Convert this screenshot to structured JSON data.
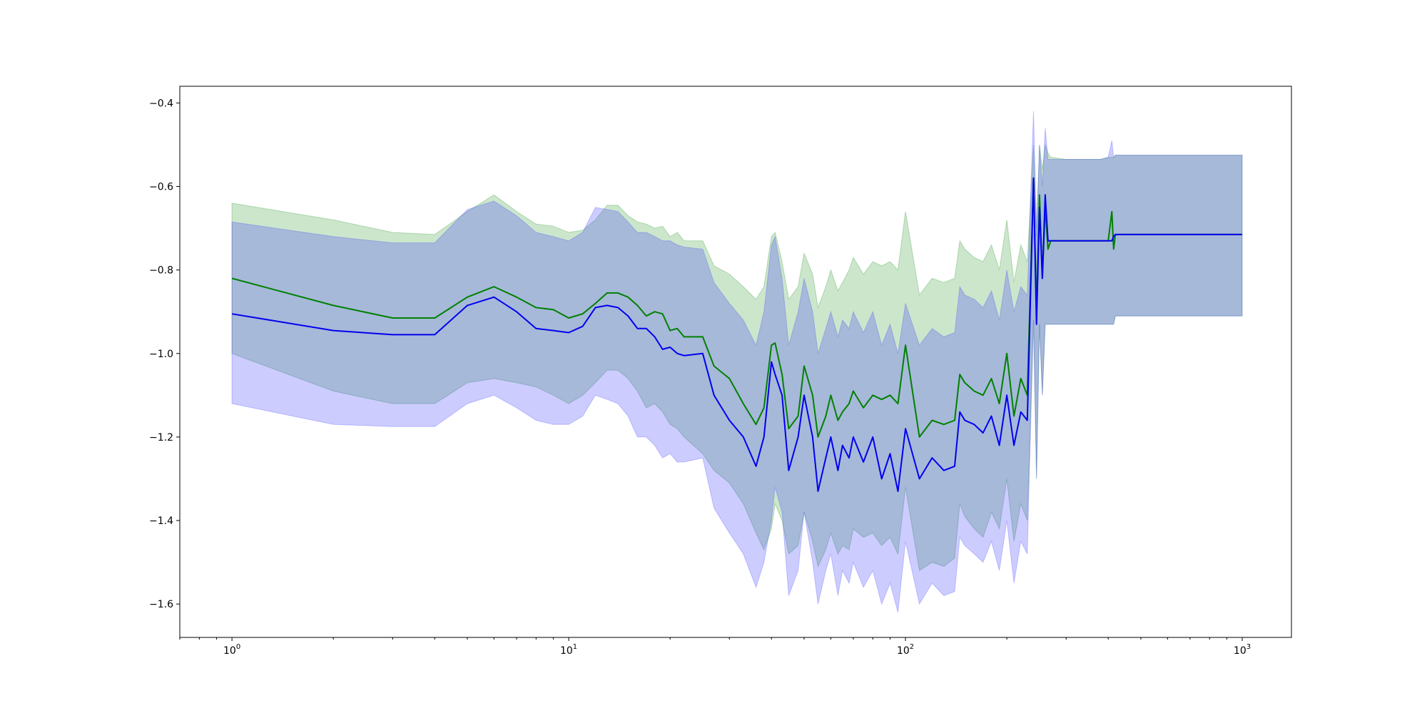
{
  "chart_data": {
    "type": "line",
    "title": "",
    "xlabel": "",
    "ylabel": "",
    "xscale": "log",
    "xlim": [
      0.7,
      1400
    ],
    "ylim": [
      -1.68,
      -0.36
    ],
    "grid": false,
    "legend": "none",
    "x_tick_values": [
      1,
      10,
      100,
      1000
    ],
    "x_ticks": [
      {
        "base": "10",
        "exp": "0"
      },
      {
        "base": "10",
        "exp": "1"
      },
      {
        "base": "10",
        "exp": "2"
      },
      {
        "base": "10",
        "exp": "3"
      }
    ],
    "y_tick_values": [
      -1.6,
      -1.4,
      -1.2,
      -1.0,
      -0.8,
      -0.6,
      -0.4
    ],
    "y_tick_labels": [
      "−1.6",
      "−1.4",
      "−1.2",
      "−1.0",
      "−0.8",
      "−0.6",
      "−0.4"
    ],
    "series": [
      {
        "color": "#008000",
        "band_color": "#008000",
        "x": [
          1,
          2,
          3,
          4,
          5,
          6,
          7,
          8,
          9,
          10,
          11,
          12,
          13,
          14,
          15,
          16,
          17,
          18,
          19,
          20,
          21,
          22,
          25,
          27,
          30,
          33,
          36,
          38,
          40,
          41,
          43,
          45,
          48,
          50,
          53,
          55,
          58,
          60,
          63,
          65,
          68,
          70,
          75,
          80,
          85,
          90,
          95,
          100,
          110,
          120,
          130,
          140,
          145,
          150,
          160,
          170,
          180,
          190,
          200,
          210,
          220,
          230,
          240,
          245,
          250,
          255,
          260,
          265,
          270,
          300,
          350,
          380,
          400,
          410,
          415,
          420,
          500,
          700,
          1000
        ],
        "y": [
          -0.82,
          -0.885,
          -0.915,
          -0.915,
          -0.865,
          -0.84,
          -0.865,
          -0.89,
          -0.895,
          -0.915,
          -0.905,
          -0.88,
          -0.855,
          -0.855,
          -0.865,
          -0.885,
          -0.91,
          -0.9,
          -0.905,
          -0.945,
          -0.94,
          -0.96,
          -0.96,
          -1.03,
          -1.06,
          -1.12,
          -1.17,
          -1.13,
          -0.98,
          -0.975,
          -1.05,
          -1.18,
          -1.15,
          -1.03,
          -1.1,
          -1.2,
          -1.15,
          -1.1,
          -1.16,
          -1.14,
          -1.12,
          -1.09,
          -1.13,
          -1.1,
          -1.11,
          -1.1,
          -1.12,
          -0.98,
          -1.2,
          -1.16,
          -1.17,
          -1.16,
          -1.05,
          -1.07,
          -1.09,
          -1.1,
          -1.06,
          -1.12,
          -1.0,
          -1.15,
          -1.06,
          -1.1,
          -0.58,
          -0.9,
          -0.62,
          -0.82,
          -0.65,
          -0.75,
          -0.73,
          -0.73,
          -0.73,
          -0.73,
          -0.73,
          -0.66,
          -0.75,
          -0.715,
          -0.715,
          -0.715,
          -0.715
        ],
        "lower": [
          -1.0,
          -1.09,
          -1.12,
          -1.12,
          -1.07,
          -1.06,
          -1.07,
          -1.08,
          -1.1,
          -1.12,
          -1.1,
          -1.07,
          -1.04,
          -1.04,
          -1.06,
          -1.09,
          -1.13,
          -1.12,
          -1.14,
          -1.17,
          -1.18,
          -1.2,
          -1.24,
          -1.28,
          -1.31,
          -1.36,
          -1.43,
          -1.47,
          -1.42,
          -1.36,
          -1.4,
          -1.48,
          -1.46,
          -1.38,
          -1.45,
          -1.51,
          -1.47,
          -1.43,
          -1.48,
          -1.46,
          -1.47,
          -1.42,
          -1.44,
          -1.43,
          -1.46,
          -1.44,
          -1.48,
          -1.32,
          -1.52,
          -1.5,
          -1.51,
          -1.49,
          -1.36,
          -1.39,
          -1.42,
          -1.44,
          -1.38,
          -1.42,
          -1.3,
          -1.45,
          -1.36,
          -1.4,
          -0.92,
          -1.3,
          -0.93,
          -1.1,
          -0.93,
          -0.93,
          -0.93,
          -0.93,
          -0.93,
          -0.93,
          -0.93,
          -0.93,
          -0.93,
          -0.91,
          -0.91,
          -0.91,
          -0.91
        ],
        "upper": [
          -0.64,
          -0.68,
          -0.71,
          -0.715,
          -0.66,
          -0.62,
          -0.66,
          -0.69,
          -0.695,
          -0.71,
          -0.705,
          -0.68,
          -0.645,
          -0.645,
          -0.67,
          -0.685,
          -0.69,
          -0.7,
          -0.695,
          -0.72,
          -0.71,
          -0.73,
          -0.73,
          -0.79,
          -0.81,
          -0.84,
          -0.87,
          -0.84,
          -0.72,
          -0.71,
          -0.78,
          -0.87,
          -0.84,
          -0.76,
          -0.81,
          -0.89,
          -0.84,
          -0.8,
          -0.85,
          -0.83,
          -0.8,
          -0.77,
          -0.81,
          -0.78,
          -0.79,
          -0.78,
          -0.8,
          -0.66,
          -0.86,
          -0.82,
          -0.83,
          -0.82,
          -0.73,
          -0.75,
          -0.77,
          -0.78,
          -0.74,
          -0.8,
          -0.68,
          -0.83,
          -0.74,
          -0.78,
          -0.5,
          -0.72,
          -0.5,
          -0.56,
          -0.5,
          -0.52,
          -0.53,
          -0.535,
          -0.535,
          -0.535,
          -0.53,
          -0.53,
          -0.53,
          -0.525,
          -0.525,
          -0.525,
          -0.525
        ]
      },
      {
        "color": "#0000ee",
        "band_color": "#3333ff",
        "x": [
          1,
          2,
          3,
          4,
          5,
          6,
          7,
          8,
          9,
          10,
          11,
          12,
          13,
          14,
          15,
          16,
          17,
          18,
          19,
          20,
          21,
          22,
          25,
          27,
          30,
          33,
          36,
          38,
          40,
          41,
          43,
          45,
          48,
          50,
          53,
          55,
          58,
          60,
          63,
          65,
          68,
          70,
          75,
          80,
          85,
          90,
          95,
          100,
          110,
          120,
          130,
          140,
          145,
          150,
          160,
          170,
          180,
          190,
          200,
          210,
          220,
          230,
          240,
          245,
          250,
          255,
          260,
          265,
          270,
          300,
          350,
          380,
          400,
          410,
          415,
          420,
          500,
          700,
          1000
        ],
        "y": [
          -0.905,
          -0.945,
          -0.955,
          -0.955,
          -0.885,
          -0.865,
          -0.9,
          -0.94,
          -0.945,
          -0.95,
          -0.935,
          -0.89,
          -0.885,
          -0.89,
          -0.91,
          -0.94,
          -0.94,
          -0.96,
          -0.99,
          -0.985,
          -1.0,
          -1.005,
          -1.0,
          -1.1,
          -1.16,
          -1.2,
          -1.27,
          -1.2,
          -1.02,
          -1.05,
          -1.1,
          -1.28,
          -1.2,
          -1.1,
          -1.2,
          -1.33,
          -1.25,
          -1.2,
          -1.28,
          -1.22,
          -1.25,
          -1.2,
          -1.26,
          -1.2,
          -1.3,
          -1.24,
          -1.33,
          -1.18,
          -1.3,
          -1.25,
          -1.28,
          -1.27,
          -1.14,
          -1.16,
          -1.17,
          -1.19,
          -1.15,
          -1.22,
          -1.1,
          -1.22,
          -1.14,
          -1.16,
          -0.58,
          -0.93,
          -0.65,
          -0.82,
          -0.62,
          -0.73,
          -0.73,
          -0.73,
          -0.73,
          -0.73,
          -0.73,
          -0.73,
          -0.72,
          -0.715,
          -0.715,
          -0.715,
          -0.715
        ],
        "lower": [
          -1.12,
          -1.17,
          -1.175,
          -1.175,
          -1.12,
          -1.1,
          -1.13,
          -1.16,
          -1.17,
          -1.17,
          -1.15,
          -1.1,
          -1.11,
          -1.12,
          -1.15,
          -1.2,
          -1.2,
          -1.22,
          -1.25,
          -1.24,
          -1.26,
          -1.26,
          -1.25,
          -1.37,
          -1.43,
          -1.48,
          -1.56,
          -1.5,
          -1.4,
          -1.32,
          -1.38,
          -1.58,
          -1.52,
          -1.38,
          -1.5,
          -1.6,
          -1.52,
          -1.48,
          -1.58,
          -1.52,
          -1.55,
          -1.5,
          -1.56,
          -1.52,
          -1.6,
          -1.55,
          -1.62,
          -1.45,
          -1.6,
          -1.55,
          -1.58,
          -1.57,
          -1.44,
          -1.46,
          -1.48,
          -1.5,
          -1.45,
          -1.52,
          -1.4,
          -1.55,
          -1.45,
          -1.48,
          -0.92,
          -1.3,
          -0.93,
          -1.1,
          -0.93,
          -0.93,
          -0.93,
          -0.93,
          -0.93,
          -0.93,
          -0.93,
          -0.93,
          -0.93,
          -0.91,
          -0.91,
          -0.91,
          -0.91
        ],
        "upper": [
          -0.685,
          -0.72,
          -0.735,
          -0.735,
          -0.655,
          -0.635,
          -0.67,
          -0.71,
          -0.72,
          -0.73,
          -0.71,
          -0.65,
          -0.655,
          -0.66,
          -0.685,
          -0.71,
          -0.71,
          -0.72,
          -0.73,
          -0.73,
          -0.74,
          -0.745,
          -0.75,
          -0.83,
          -0.88,
          -0.92,
          -0.98,
          -0.9,
          -0.74,
          -0.72,
          -0.82,
          -0.98,
          -0.9,
          -0.82,
          -0.9,
          -1.0,
          -0.94,
          -0.9,
          -0.96,
          -0.92,
          -0.94,
          -0.9,
          -0.95,
          -0.9,
          -0.98,
          -0.93,
          -1.0,
          -0.88,
          -0.98,
          -0.94,
          -0.96,
          -0.95,
          -0.84,
          -0.86,
          -0.87,
          -0.89,
          -0.85,
          -0.92,
          -0.8,
          -0.9,
          -0.84,
          -0.86,
          -0.42,
          -0.7,
          -0.5,
          -0.6,
          -0.46,
          -0.535,
          -0.535,
          -0.535,
          -0.535,
          -0.535,
          -0.53,
          -0.49,
          -0.53,
          -0.525,
          -0.525,
          -0.525,
          -0.525
        ]
      }
    ]
  }
}
